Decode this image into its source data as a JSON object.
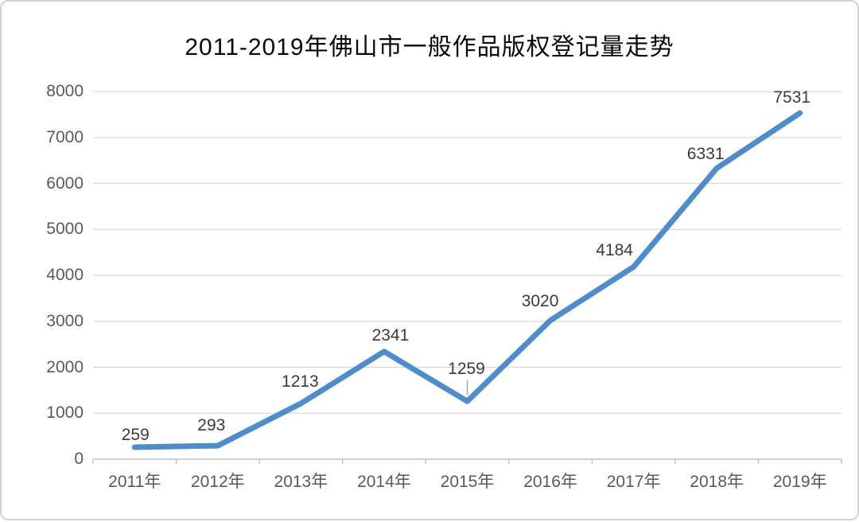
{
  "chart_data": {
    "type": "line",
    "title": "2011-2019年佛山市一般作品版权登记量走势",
    "categories": [
      "2011年",
      "2012年",
      "2013年",
      "2014年",
      "2015年",
      "2016年",
      "2017年",
      "2018年",
      "2019年"
    ],
    "values": [
      259,
      293,
      1213,
      2341,
      1259,
      3020,
      4184,
      6331,
      7531
    ],
    "xlabel": "",
    "ylabel": "",
    "ylim": [
      0,
      8000
    ],
    "yticks": [
      0,
      1000,
      2000,
      3000,
      4000,
      5000,
      6000,
      7000,
      8000
    ],
    "grid": true,
    "legend": "none",
    "data_labels": true,
    "line_color": "#4e8dc9",
    "gridline_color": "#d9d9d9",
    "axis_line_color": "#bfbfbf",
    "leader_line_color": "#a6a6a6",
    "axis_text_color": "#595959",
    "data_label_color": "#3b3b3b",
    "title_color": "#080808"
  }
}
